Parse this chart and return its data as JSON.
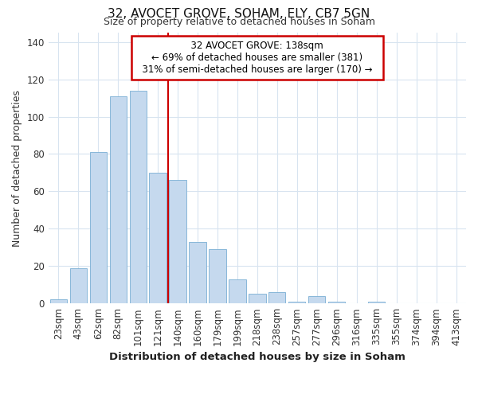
{
  "title": "32, AVOCET GROVE, SOHAM, ELY, CB7 5GN",
  "subtitle": "Size of property relative to detached houses in Soham",
  "xlabel": "Distribution of detached houses by size in Soham",
  "ylabel": "Number of detached properties",
  "categories": [
    "23sqm",
    "43sqm",
    "62sqm",
    "82sqm",
    "101sqm",
    "121sqm",
    "140sqm",
    "160sqm",
    "179sqm",
    "199sqm",
    "218sqm",
    "238sqm",
    "257sqm",
    "277sqm",
    "296sqm",
    "316sqm",
    "335sqm",
    "355sqm",
    "374sqm",
    "394sqm",
    "413sqm"
  ],
  "values": [
    2,
    19,
    81,
    111,
    114,
    70,
    66,
    33,
    29,
    13,
    5,
    6,
    1,
    4,
    1,
    0,
    1,
    0,
    0,
    0,
    0
  ],
  "bar_color": "#c5d9ee",
  "bar_edge_color": "#7aafd4",
  "background_color": "#ffffff",
  "grid_color": "#d8e4f0",
  "annotation_box_text": "  32 AVOCET GROVE: 138sqm  \n← 69% of detached houses are smaller (381)\n  31% of semi-detached houses are larger (170) →  ",
  "annotation_box_color": "#ffffff",
  "annotation_box_edge_color": "#cc0000",
  "red_line_index": 6,
  "ylim": [
    0,
    145
  ],
  "yticks": [
    0,
    20,
    40,
    60,
    80,
    100,
    120,
    140
  ]
}
